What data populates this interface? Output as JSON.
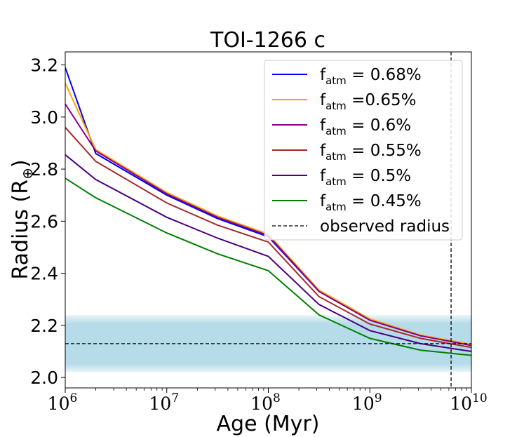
{
  "chart_data": {
    "type": "line",
    "title": "TOI-1266 c",
    "xlabel": "Age (Myr)",
    "ylabel": "Radius (R",
    "ylabel_symbol": "⊕",
    "ylabel_close": ")",
    "xscale": "log",
    "xlim_exponents": [
      6,
      10
    ],
    "ylim": [
      1.96,
      3.25
    ],
    "x_ticks": [
      {
        "base": "10",
        "exp": "6",
        "value": 6
      },
      {
        "base": "10",
        "exp": "7",
        "value": 7
      },
      {
        "base": "10",
        "exp": "8",
        "value": 8
      },
      {
        "base": "10",
        "exp": "9",
        "value": 9
      },
      {
        "base": "10",
        "exp": "10",
        "value": 10
      }
    ],
    "y_ticks": [
      "2.0",
      "2.2",
      "2.4",
      "2.6",
      "2.8",
      "3.0",
      "3.2"
    ],
    "observed_radius": 2.13,
    "observed_band": [
      2.02,
      2.24
    ],
    "observed_age_log10": 9.8,
    "series": [
      {
        "name_prefix": "f",
        "name_sub": "atm",
        "name_suffix": " = 0.68%",
        "color": "#0000ee",
        "points": [
          [
            6,
            3.19
          ],
          [
            6.3,
            2.86
          ],
          [
            7,
            2.7
          ],
          [
            7.5,
            2.61
          ],
          [
            8,
            2.54
          ],
          [
            8.5,
            2.33
          ],
          [
            9,
            2.22
          ],
          [
            9.5,
            2.16
          ],
          [
            10,
            2.125
          ]
        ]
      },
      {
        "name_prefix": "f",
        "name_sub": "atm",
        "name_suffix": " =0.65%",
        "color": "#ffa500",
        "points": [
          [
            6,
            3.13
          ],
          [
            6.3,
            2.875
          ],
          [
            7,
            2.71
          ],
          [
            7.5,
            2.62
          ],
          [
            8,
            2.55
          ],
          [
            8.5,
            2.335
          ],
          [
            9,
            2.225
          ],
          [
            9.5,
            2.163
          ],
          [
            10,
            2.127
          ]
        ]
      },
      {
        "name_prefix": "f",
        "name_sub": "atm",
        "name_suffix": " = 0.6%",
        "color": "#8b008b",
        "points": [
          [
            6,
            3.05
          ],
          [
            6.3,
            2.87
          ],
          [
            7,
            2.705
          ],
          [
            7.5,
            2.615
          ],
          [
            8,
            2.545
          ],
          [
            8.5,
            2.33
          ],
          [
            9,
            2.22
          ],
          [
            9.5,
            2.16
          ],
          [
            10,
            2.123
          ]
        ]
      },
      {
        "name_prefix": "f",
        "name_sub": "atm",
        "name_suffix": " = 0.55%",
        "color": "#a52a2a",
        "points": [
          [
            6,
            2.96
          ],
          [
            6.3,
            2.83
          ],
          [
            7,
            2.67
          ],
          [
            7.5,
            2.585
          ],
          [
            8,
            2.52
          ],
          [
            8.5,
            2.31
          ],
          [
            9,
            2.205
          ],
          [
            9.5,
            2.15
          ],
          [
            10,
            2.115
          ]
        ]
      },
      {
        "name_prefix": "f",
        "name_sub": "atm",
        "name_suffix": " = 0.5%",
        "color": "#4b0082",
        "points": [
          [
            6,
            2.855
          ],
          [
            6.3,
            2.76
          ],
          [
            7,
            2.615
          ],
          [
            7.5,
            2.535
          ],
          [
            8,
            2.465
          ],
          [
            8.5,
            2.28
          ],
          [
            9,
            2.18
          ],
          [
            9.5,
            2.13
          ],
          [
            10,
            2.1
          ]
        ]
      },
      {
        "name_prefix": "f",
        "name_sub": "atm",
        "name_suffix": " = 0.45%",
        "color": "#008000",
        "points": [
          [
            6,
            2.765
          ],
          [
            6.3,
            2.69
          ],
          [
            7,
            2.555
          ],
          [
            7.5,
            2.475
          ],
          [
            8,
            2.41
          ],
          [
            8.5,
            2.24
          ],
          [
            9,
            2.15
          ],
          [
            9.5,
            2.105
          ],
          [
            10,
            2.085
          ]
        ]
      }
    ],
    "legend": {
      "position": "top-right",
      "observed_label": "observed radius"
    }
  }
}
